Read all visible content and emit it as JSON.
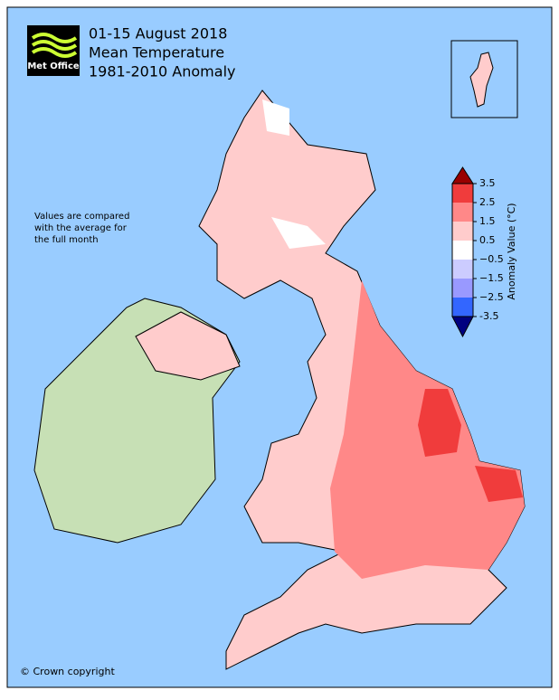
{
  "logo": "Met Office",
  "title": [
    "01-15 August 2018",
    "Mean Temperature",
    "1981-2010 Anomaly"
  ],
  "note": [
    "Values are compared",
    "with the average for",
    "the full month"
  ],
  "copyright": "© Crown copyright",
  "colorbar": {
    "label": "Anomaly Value (°C)",
    "lim": [
      -3.5,
      3.5
    ],
    "ticks": [
      -3.5,
      {
        "value": -2.5,
        "label": "−2.5"
      },
      {
        "value": -1.5,
        "label": "−1.5"
      },
      {
        "value": -0.5,
        "label": "−0.5"
      },
      0.5,
      1.5,
      2.5,
      3.5
    ],
    "colors": [
      "#3366ff",
      "#9999ff",
      "#ccccff",
      "#ffffff",
      "#ffcccc",
      "#ff8888",
      "#f03c3c"
    ],
    "under_color": "#000080",
    "over_color": "#990000"
  }
}
